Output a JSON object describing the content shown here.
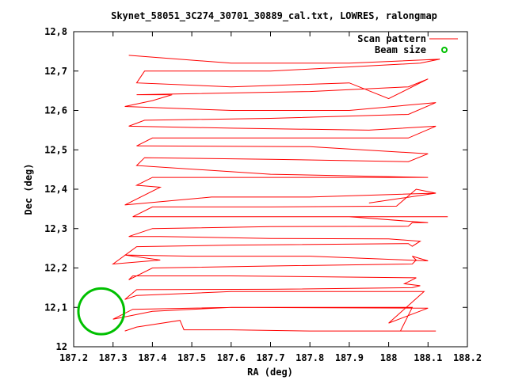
{
  "chart_data": {
    "type": "line",
    "title": "Skynet_58051_3C274_30701_30889_cal.txt, LOWRES, ralongmap",
    "xlabel": "RA (deg)",
    "ylabel": "Dec (deg)",
    "xlim": [
      187.2,
      188.2
    ],
    "ylim": [
      12.0,
      12.8
    ],
    "x_ticks": [
      187.2,
      187.3,
      187.4,
      187.5,
      187.6,
      187.7,
      187.8,
      187.9,
      188.0,
      188.1,
      188.2
    ],
    "x_tick_labels": [
      "187.2",
      "187.3",
      "187.4",
      "187.5",
      "187.6",
      "187.7",
      "187.8",
      "187.9",
      "188",
      "188.1",
      "188.2"
    ],
    "y_ticks": [
      12.0,
      12.1,
      12.2,
      12.3,
      12.4,
      12.5,
      12.6,
      12.7,
      12.8
    ],
    "y_tick_labels": [
      "12",
      "12,1",
      "12,2",
      "12,3",
      "12,4",
      "12,5",
      "12,6",
      "12,7",
      "12,8"
    ],
    "legend": {
      "placement": "top-right"
    },
    "grid": false,
    "series": [
      {
        "name": "Scan pattern",
        "color": "#ff0000",
        "kind": "line",
        "points": [
          [
            187.33,
            12.04
          ],
          [
            187.36,
            12.05
          ],
          [
            187.47,
            12.067
          ],
          [
            187.48,
            12.043
          ],
          [
            187.6,
            12.043
          ],
          [
            187.8,
            12.04
          ],
          [
            188.12,
            12.04
          ],
          [
            188.03,
            12.04
          ],
          [
            188.06,
            12.1
          ],
          [
            187.95,
            12.1
          ],
          [
            187.88,
            12.1
          ],
          [
            187.6,
            12.1
          ],
          [
            187.4,
            12.09
          ],
          [
            187.3,
            12.07
          ],
          [
            187.35,
            12.095
          ],
          [
            187.6,
            12.1
          ],
          [
            188.1,
            12.098
          ],
          [
            188.0,
            12.06
          ],
          [
            188.09,
            12.14
          ],
          [
            187.8,
            12.14
          ],
          [
            187.6,
            12.14
          ],
          [
            187.36,
            12.13
          ],
          [
            187.33,
            12.12
          ],
          [
            187.36,
            12.145
          ],
          [
            187.7,
            12.146
          ],
          [
            188.06,
            12.15
          ],
          [
            188.08,
            12.155
          ],
          [
            188.04,
            12.16
          ],
          [
            188.07,
            12.175
          ],
          [
            187.6,
            12.18
          ],
          [
            187.35,
            12.18
          ],
          [
            187.34,
            12.17
          ],
          [
            187.4,
            12.2
          ],
          [
            187.7,
            12.205
          ],
          [
            188.06,
            12.21
          ],
          [
            188.07,
            12.22
          ],
          [
            188.06,
            12.23
          ],
          [
            188.1,
            12.218
          ],
          [
            187.8,
            12.23
          ],
          [
            187.5,
            12.23
          ],
          [
            187.33,
            12.233
          ],
          [
            187.42,
            12.22
          ],
          [
            187.3,
            12.21
          ],
          [
            187.36,
            12.254
          ],
          [
            187.6,
            12.258
          ],
          [
            188.05,
            12.262
          ],
          [
            188.06,
            12.255
          ],
          [
            188.08,
            12.268
          ],
          [
            188.0,
            12.274
          ],
          [
            187.7,
            12.275
          ],
          [
            187.42,
            12.28
          ],
          [
            187.34,
            12.28
          ],
          [
            187.4,
            12.3
          ],
          [
            187.7,
            12.305
          ],
          [
            188.05,
            12.306
          ],
          [
            188.06,
            12.315
          ],
          [
            188.1,
            12.315
          ],
          [
            187.9,
            12.33
          ],
          [
            188.15,
            12.33
          ],
          [
            187.9,
            12.33
          ],
          [
            187.6,
            12.33
          ],
          [
            187.35,
            12.33
          ],
          [
            187.4,
            12.355
          ],
          [
            187.7,
            12.355
          ],
          [
            188.02,
            12.357
          ],
          [
            188.07,
            12.4
          ],
          [
            188.12,
            12.39
          ],
          [
            187.95,
            12.365
          ],
          [
            188.12,
            12.39
          ],
          [
            187.8,
            12.38
          ],
          [
            187.55,
            12.38
          ],
          [
            187.33,
            12.36
          ],
          [
            187.42,
            12.405
          ],
          [
            187.36,
            12.41
          ],
          [
            187.4,
            12.43
          ],
          [
            187.7,
            12.43
          ],
          [
            188.05,
            12.43
          ],
          [
            188.1,
            12.43
          ],
          [
            187.7,
            12.438
          ],
          [
            187.36,
            12.46
          ],
          [
            187.38,
            12.48
          ],
          [
            187.7,
            12.476
          ],
          [
            188.05,
            12.47
          ],
          [
            188.1,
            12.49
          ],
          [
            187.8,
            12.508
          ],
          [
            187.36,
            12.51
          ],
          [
            187.4,
            12.53
          ],
          [
            187.7,
            12.53
          ],
          [
            188.05,
            12.53
          ],
          [
            188.12,
            12.56
          ],
          [
            187.95,
            12.55
          ],
          [
            187.6,
            12.555
          ],
          [
            187.34,
            12.56
          ],
          [
            187.38,
            12.575
          ],
          [
            187.7,
            12.58
          ],
          [
            188.05,
            12.59
          ],
          [
            188.12,
            12.62
          ],
          [
            187.9,
            12.6
          ],
          [
            187.6,
            12.6
          ],
          [
            187.33,
            12.61
          ],
          [
            187.4,
            12.625
          ],
          [
            187.45,
            12.64
          ],
          [
            187.36,
            12.64
          ],
          [
            187.8,
            12.648
          ],
          [
            188.05,
            12.66
          ],
          [
            188.1,
            12.68
          ],
          [
            188.0,
            12.63
          ],
          [
            187.9,
            12.67
          ],
          [
            187.6,
            12.66
          ],
          [
            187.36,
            12.67
          ],
          [
            187.38,
            12.7
          ],
          [
            187.7,
            12.7
          ],
          [
            188.08,
            12.72
          ],
          [
            188.13,
            12.73
          ],
          [
            187.9,
            12.72
          ],
          [
            187.6,
            12.72
          ],
          [
            187.34,
            12.74
          ]
        ]
      },
      {
        "name": "Beam size",
        "color": "#00c000",
        "kind": "circle",
        "center": [
          187.27,
          12.09
        ],
        "radius": 0.058
      }
    ]
  }
}
